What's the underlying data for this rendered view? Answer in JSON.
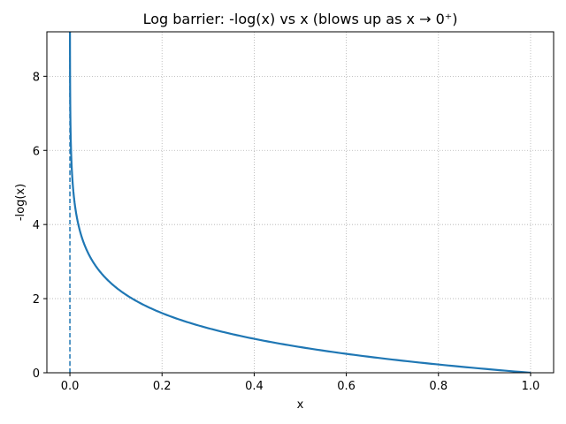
{
  "chart_data": {
    "type": "line",
    "title": "Log barrier: -log(x) vs x (blows up as x → 0⁺)",
    "xlabel": "x",
    "ylabel": "-log(x)",
    "xlim": [
      -0.05,
      1.05
    ],
    "ylim": [
      0,
      9.2
    ],
    "x_ticks": [
      0.0,
      0.2,
      0.4,
      0.6,
      0.8,
      1.0
    ],
    "x_tick_labels": [
      "0.0",
      "0.2",
      "0.4",
      "0.6",
      "0.8",
      "1.0"
    ],
    "y_ticks": [
      0,
      2,
      4,
      6,
      8
    ],
    "y_tick_labels": [
      "0",
      "2",
      "4",
      "6",
      "8"
    ],
    "grid": true,
    "series": [
      {
        "function": "-log(x)",
        "x_range": [
          0.0001,
          1.0
        ],
        "color": "#1f77b4",
        "line_style": "solid"
      }
    ],
    "vertical_lines": [
      {
        "x": 0.0,
        "color": "#1f77b4",
        "line_style": "dashed"
      }
    ]
  }
}
